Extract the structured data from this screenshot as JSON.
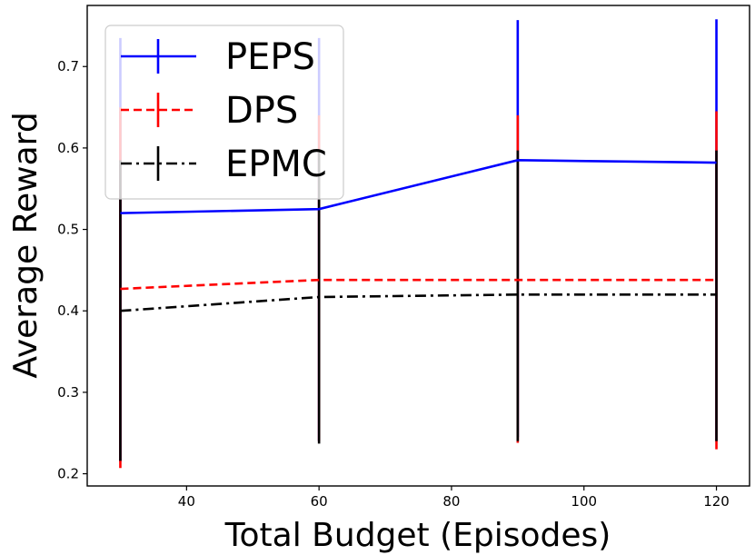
{
  "chart_data": {
    "type": "line",
    "xlabel": "Total Budget (Episodes)",
    "ylabel": "Average Reward",
    "xlim": [
      25,
      125
    ],
    "ylim": [
      0.185,
      0.775
    ],
    "xticks": [
      40,
      60,
      80,
      100,
      120
    ],
    "yticks": [
      0.2,
      0.3,
      0.4,
      0.5,
      0.6,
      0.7
    ],
    "ytick_labels": [
      "0.2",
      "0.3",
      "0.4",
      "0.5",
      "0.6",
      "0.7"
    ],
    "grid": false,
    "legend": "top-left",
    "x": [
      30,
      60,
      90,
      120
    ],
    "series": [
      {
        "name": "PEPS",
        "color": "#0000ff",
        "linestyle": "solid",
        "values": [
          0.52,
          0.525,
          0.585,
          0.582
        ],
        "err_low": [
          0.215,
          0.24,
          0.245,
          0.24
        ],
        "err_high": [
          0.735,
          0.735,
          0.757,
          0.758
        ]
      },
      {
        "name": "DPS",
        "color": "#ff0000",
        "linestyle": "dashed",
        "values": [
          0.427,
          0.438,
          0.438,
          0.438
        ],
        "err_low": [
          0.207,
          0.24,
          0.238,
          0.23
        ],
        "err_high": [
          0.65,
          0.64,
          0.64,
          0.645
        ]
      },
      {
        "name": "EPMC",
        "color": "#000000",
        "linestyle": "dashdot",
        "values": [
          0.4,
          0.417,
          0.42,
          0.42
        ],
        "err_low": [
          0.216,
          0.237,
          0.24,
          0.24
        ],
        "err_high": [
          0.585,
          0.595,
          0.597,
          0.597
        ]
      }
    ]
  }
}
